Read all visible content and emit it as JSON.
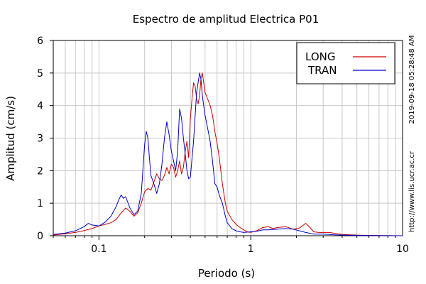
{
  "chart_data": {
    "type": "line",
    "title": "Espectro de amplitud Electrica P01",
    "xlabel": "Periodo (s)",
    "ylabel": "Amplitud (cm/s)",
    "xscale": "log",
    "xlim": [
      0.05,
      10
    ],
    "ylim": [
      0,
      6
    ],
    "xticks": [
      {
        "value": 0.1,
        "label": "0.1"
      },
      {
        "value": 1,
        "label": "1"
      },
      {
        "value": 10,
        "label": "10"
      }
    ],
    "yticks": [
      {
        "value": 0,
        "label": "0"
      },
      {
        "value": 1,
        "label": "1"
      },
      {
        "value": 2,
        "label": "2"
      },
      {
        "value": 3,
        "label": "3"
      },
      {
        "value": 4,
        "label": "4"
      },
      {
        "value": 5,
        "label": "5"
      },
      {
        "value": 6,
        "label": "6"
      }
    ],
    "grid": true,
    "legend_position": "top-right",
    "series": [
      {
        "name": "LONG",
        "color": "#cc0000",
        "x": [
          0.05,
          0.06,
          0.07,
          0.08,
          0.09,
          0.1,
          0.11,
          0.12,
          0.13,
          0.14,
          0.15,
          0.16,
          0.17,
          0.18,
          0.19,
          0.2,
          0.21,
          0.22,
          0.23,
          0.24,
          0.25,
          0.26,
          0.27,
          0.28,
          0.29,
          0.3,
          0.31,
          0.32,
          0.33,
          0.34,
          0.35,
          0.36,
          0.37,
          0.38,
          0.39,
          0.4,
          0.41,
          0.42,
          0.43,
          0.44,
          0.45,
          0.46,
          0.47,
          0.48,
          0.49,
          0.5,
          0.52,
          0.54,
          0.56,
          0.58,
          0.6,
          0.62,
          0.65,
          0.68,
          0.7,
          0.75,
          0.8,
          0.85,
          0.9,
          0.95,
          1.0,
          1.1,
          1.2,
          1.3,
          1.4,
          1.5,
          1.7,
          1.9,
          2.1,
          2.3,
          2.4,
          2.6,
          2.8,
          3.0,
          3.3,
          3.6,
          4.0,
          5.0,
          6.0,
          8.0,
          10.0
        ],
        "y": [
          0.02,
          0.06,
          0.1,
          0.16,
          0.22,
          0.3,
          0.35,
          0.4,
          0.5,
          0.7,
          0.85,
          0.75,
          0.6,
          0.7,
          1.0,
          1.35,
          1.45,
          1.4,
          1.65,
          1.9,
          1.75,
          1.7,
          1.85,
          2.1,
          1.9,
          2.2,
          2.1,
          1.8,
          2.0,
          2.3,
          1.9,
          2.1,
          2.6,
          2.9,
          2.4,
          3.6,
          4.2,
          4.7,
          4.6,
          4.2,
          4.05,
          4.3,
          4.85,
          5.0,
          4.7,
          4.4,
          4.2,
          4.0,
          3.7,
          3.2,
          2.85,
          2.4,
          1.6,
          1.0,
          0.75,
          0.5,
          0.35,
          0.25,
          0.18,
          0.12,
          0.1,
          0.16,
          0.25,
          0.28,
          0.22,
          0.25,
          0.28,
          0.2,
          0.24,
          0.38,
          0.3,
          0.12,
          0.1,
          0.1,
          0.1,
          0.07,
          0.04,
          0.02,
          0.01,
          0.005,
          0.0
        ]
      },
      {
        "name": "TRAN",
        "color": "#0000cc",
        "x": [
          0.05,
          0.06,
          0.07,
          0.08,
          0.085,
          0.09,
          0.1,
          0.11,
          0.12,
          0.13,
          0.135,
          0.14,
          0.145,
          0.15,
          0.16,
          0.17,
          0.18,
          0.19,
          0.2,
          0.205,
          0.21,
          0.215,
          0.22,
          0.23,
          0.24,
          0.25,
          0.26,
          0.27,
          0.28,
          0.29,
          0.3,
          0.31,
          0.32,
          0.33,
          0.34,
          0.35,
          0.36,
          0.37,
          0.38,
          0.39,
          0.4,
          0.42,
          0.44,
          0.46,
          0.47,
          0.48,
          0.49,
          0.5,
          0.52,
          0.54,
          0.56,
          0.58,
          0.6,
          0.62,
          0.65,
          0.68,
          0.7,
          0.75,
          0.8,
          0.85,
          0.9,
          1.0,
          1.1,
          1.2,
          1.3,
          1.5,
          1.7,
          1.9,
          2.1,
          2.3,
          2.6,
          3.0,
          3.5,
          4.0,
          5.0,
          6.0,
          8.0,
          10.0
        ],
        "y": [
          0.04,
          0.08,
          0.15,
          0.28,
          0.38,
          0.33,
          0.3,
          0.42,
          0.6,
          0.9,
          1.1,
          1.25,
          1.15,
          1.2,
          0.85,
          0.65,
          0.75,
          1.3,
          2.8,
          3.2,
          3.0,
          2.4,
          1.85,
          1.6,
          1.3,
          1.6,
          2.2,
          3.0,
          3.5,
          3.1,
          2.6,
          2.3,
          2.0,
          2.6,
          3.9,
          3.6,
          3.0,
          2.5,
          2.0,
          1.75,
          1.8,
          2.9,
          4.4,
          5.0,
          4.8,
          4.3,
          4.0,
          3.7,
          3.3,
          2.9,
          2.3,
          1.6,
          1.5,
          1.25,
          1.0,
          0.6,
          0.4,
          0.22,
          0.15,
          0.12,
          0.1,
          0.12,
          0.14,
          0.18,
          0.18,
          0.2,
          0.22,
          0.2,
          0.15,
          0.1,
          0.05,
          0.05,
          0.03,
          0.02,
          0.01,
          0.005,
          0.0,
          0.0
        ]
      }
    ]
  },
  "side_text": {
    "timestamp": "2019-09-18 05:28:48 AM",
    "url": "http://www.lis.ucr.ac.cr"
  }
}
